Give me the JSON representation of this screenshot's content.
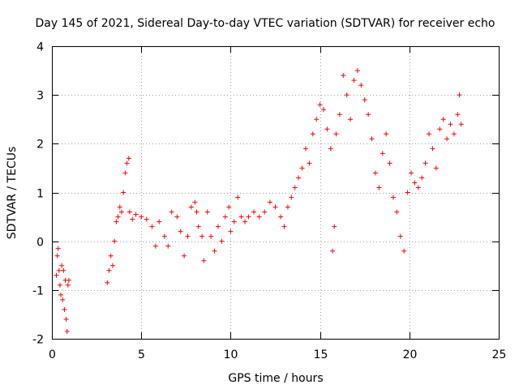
{
  "chart_data": {
    "type": "scatter",
    "title": "Day 145 of 2021, Sidereal Day-to-day VTEC variation (SDTVAR) for receiver echo",
    "xlabel": "GPS time / hours",
    "ylabel": "SDTVAR / TECUs",
    "xlim": [
      0,
      25
    ],
    "ylim": [
      -2,
      4
    ],
    "xticks": [
      0,
      5,
      10,
      15,
      20,
      25
    ],
    "yticks": [
      -2,
      -1,
      0,
      1,
      2,
      3,
      4
    ],
    "grid": true,
    "marker": "+",
    "marker_color": "#ff0000",
    "series": [
      {
        "name": "SDTVAR",
        "points": [
          [
            0.25,
            -0.7
          ],
          [
            0.3,
            -0.3
          ],
          [
            0.35,
            -0.15
          ],
          [
            0.4,
            -0.6
          ],
          [
            0.45,
            -0.9
          ],
          [
            0.5,
            -1.1
          ],
          [
            0.55,
            -0.5
          ],
          [
            0.6,
            -1.2
          ],
          [
            0.65,
            -0.6
          ],
          [
            0.7,
            -1.4
          ],
          [
            0.75,
            -0.8
          ],
          [
            0.8,
            -1.6
          ],
          [
            0.85,
            -1.85
          ],
          [
            0.9,
            -0.9
          ],
          [
            0.95,
            -0.8
          ],
          [
            3.1,
            -0.85
          ],
          [
            3.2,
            -0.6
          ],
          [
            3.3,
            -0.3
          ],
          [
            3.4,
            -0.5
          ],
          [
            3.5,
            0.0
          ],
          [
            3.6,
            0.4
          ],
          [
            3.7,
            0.5
          ],
          [
            3.8,
            0.7
          ],
          [
            3.9,
            0.6
          ],
          [
            4.0,
            1.0
          ],
          [
            4.1,
            1.4
          ],
          [
            4.2,
            1.6
          ],
          [
            4.3,
            1.7
          ],
          [
            4.35,
            0.6
          ],
          [
            4.5,
            0.45
          ],
          [
            4.7,
            0.55
          ],
          [
            5.0,
            0.5
          ],
          [
            5.3,
            0.45
          ],
          [
            5.6,
            0.3
          ],
          [
            5.8,
            -0.1
          ],
          [
            6.0,
            0.4
          ],
          [
            6.3,
            0.1
          ],
          [
            6.5,
            -0.1
          ],
          [
            6.7,
            0.6
          ],
          [
            7.0,
            0.5
          ],
          [
            7.2,
            0.2
          ],
          [
            7.4,
            -0.3
          ],
          [
            7.6,
            0.1
          ],
          [
            7.8,
            0.7
          ],
          [
            8.0,
            0.8
          ],
          [
            8.1,
            0.6
          ],
          [
            8.2,
            0.3
          ],
          [
            8.4,
            0.1
          ],
          [
            8.5,
            -0.4
          ],
          [
            8.7,
            0.6
          ],
          [
            8.9,
            0.1
          ],
          [
            9.1,
            -0.2
          ],
          [
            9.3,
            0.3
          ],
          [
            9.5,
            0.0
          ],
          [
            9.7,
            0.5
          ],
          [
            9.9,
            0.7
          ],
          [
            10.0,
            0.2
          ],
          [
            10.2,
            0.4
          ],
          [
            10.4,
            0.9
          ],
          [
            10.6,
            0.5
          ],
          [
            10.8,
            0.4
          ],
          [
            11.0,
            0.5
          ],
          [
            11.3,
            0.6
          ],
          [
            11.6,
            0.5
          ],
          [
            11.9,
            0.6
          ],
          [
            12.2,
            0.8
          ],
          [
            12.5,
            0.7
          ],
          [
            12.8,
            0.5
          ],
          [
            13.0,
            0.3
          ],
          [
            13.2,
            0.7
          ],
          [
            13.4,
            0.9
          ],
          [
            13.6,
            1.1
          ],
          [
            13.8,
            1.3
          ],
          [
            14.0,
            1.5
          ],
          [
            14.2,
            1.9
          ],
          [
            14.4,
            1.6
          ],
          [
            14.6,
            2.2
          ],
          [
            14.8,
            2.5
          ],
          [
            15.0,
            2.8
          ],
          [
            15.2,
            2.7
          ],
          [
            15.4,
            2.3
          ],
          [
            15.6,
            1.9
          ],
          [
            15.7,
            -0.2
          ],
          [
            15.8,
            0.3
          ],
          [
            15.9,
            2.2
          ],
          [
            16.1,
            2.6
          ],
          [
            16.3,
            3.4
          ],
          [
            16.5,
            3.0
          ],
          [
            16.7,
            2.5
          ],
          [
            16.9,
            3.3
          ],
          [
            17.1,
            3.5
          ],
          [
            17.3,
            3.2
          ],
          [
            17.5,
            2.9
          ],
          [
            17.7,
            2.6
          ],
          [
            17.9,
            2.1
          ],
          [
            18.1,
            1.4
          ],
          [
            18.3,
            1.1
          ],
          [
            18.5,
            1.8
          ],
          [
            18.7,
            2.2
          ],
          [
            18.9,
            1.6
          ],
          [
            19.1,
            0.9
          ],
          [
            19.3,
            0.6
          ],
          [
            19.5,
            0.1
          ],
          [
            19.7,
            -0.2
          ],
          [
            19.9,
            1.0
          ],
          [
            20.1,
            1.4
          ],
          [
            20.3,
            1.2
          ],
          [
            20.5,
            1.1
          ],
          [
            20.7,
            1.3
          ],
          [
            20.9,
            1.6
          ],
          [
            21.1,
            2.2
          ],
          [
            21.3,
            1.9
          ],
          [
            21.5,
            1.5
          ],
          [
            21.7,
            2.3
          ],
          [
            21.9,
            2.5
          ],
          [
            22.1,
            2.1
          ],
          [
            22.3,
            2.4
          ],
          [
            22.5,
            2.2
          ],
          [
            22.7,
            2.6
          ],
          [
            22.8,
            3.0
          ],
          [
            22.9,
            2.4
          ]
        ]
      }
    ]
  }
}
